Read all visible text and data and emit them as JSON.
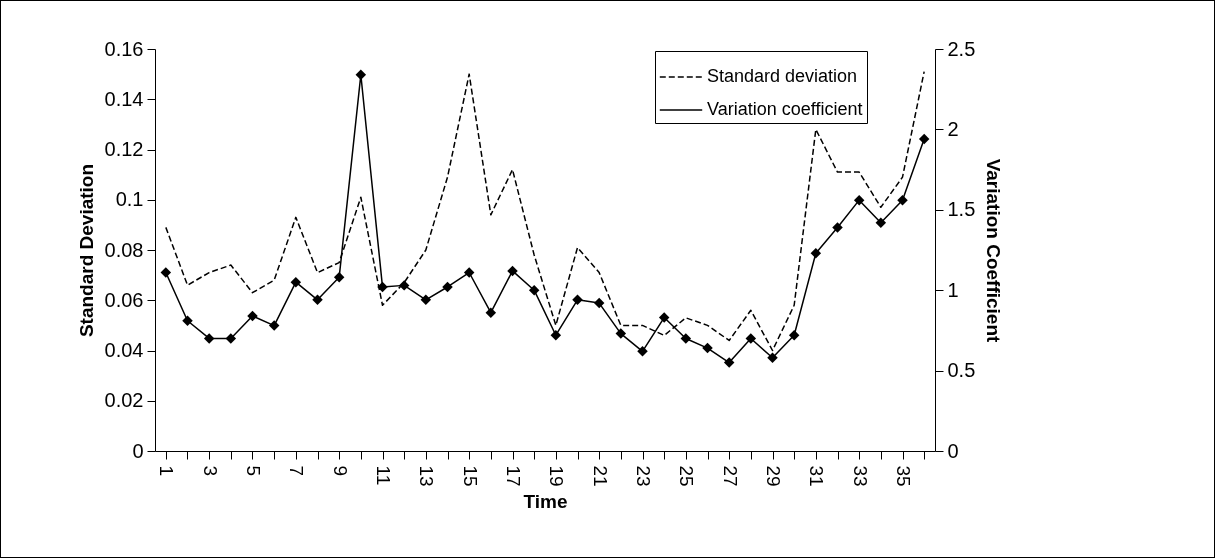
{
  "chart_data": {
    "type": "line",
    "xlabel": "Time",
    "ylabel": "Standard Deviation",
    "y2label": "Variation Coefficient",
    "categories": [
      "1",
      null,
      "3",
      null,
      "5",
      null,
      "7",
      null,
      "9",
      null,
      "11",
      null,
      "13",
      null,
      "15",
      null,
      "17",
      null,
      "19",
      null,
      "21",
      null,
      "23",
      null,
      "25",
      null,
      "27",
      null,
      "29",
      null,
      "31",
      null,
      "33",
      null,
      "35",
      null
    ],
    "series": [
      {
        "name": "Standard deviation",
        "color": "#000000",
        "line_style": "dashed",
        "marker": "none",
        "values": [
          0.089,
          0.066,
          0.071,
          0.074,
          0.063,
          0.068,
          0.093,
          0.071,
          0.075,
          0.101,
          0.058,
          0.067,
          0.08,
          0.109,
          0.15,
          0.094,
          0.112,
          0.078,
          0.05,
          0.081,
          0.071,
          0.05,
          0.05,
          0.046,
          0.053,
          0.05,
          0.044,
          0.056,
          0.04,
          0.058,
          0.128,
          0.111,
          0.111,
          0.097,
          0.109,
          0.151
        ]
      },
      {
        "name": "Variation coefficient",
        "color": "#000000",
        "line_style": "solid",
        "marker": "diamond",
        "axis": "y2",
        "values": [
          1.11,
          0.81,
          0.7,
          0.7,
          0.84,
          0.78,
          1.05,
          0.94,
          1.08,
          2.34,
          1.02,
          1.03,
          0.94,
          1.02,
          1.11,
          0.86,
          1.12,
          1.0,
          0.72,
          0.94,
          0.92,
          0.73,
          0.62,
          0.83,
          0.7,
          0.64,
          0.55,
          0.7,
          0.58,
          0.72,
          1.23,
          1.39,
          1.56,
          1.42,
          1.56,
          1.94
        ]
      }
    ],
    "ylim": [
      0,
      0.16
    ],
    "yticks": [
      0,
      0.02,
      0.04,
      0.06,
      0.08,
      0.1,
      0.12,
      0.14,
      0.16
    ],
    "y2lim": [
      0,
      2.5
    ],
    "y2ticks": [
      0,
      0.5,
      1,
      1.5,
      2,
      2.5
    ],
    "grid": false,
    "legend": "top right"
  }
}
